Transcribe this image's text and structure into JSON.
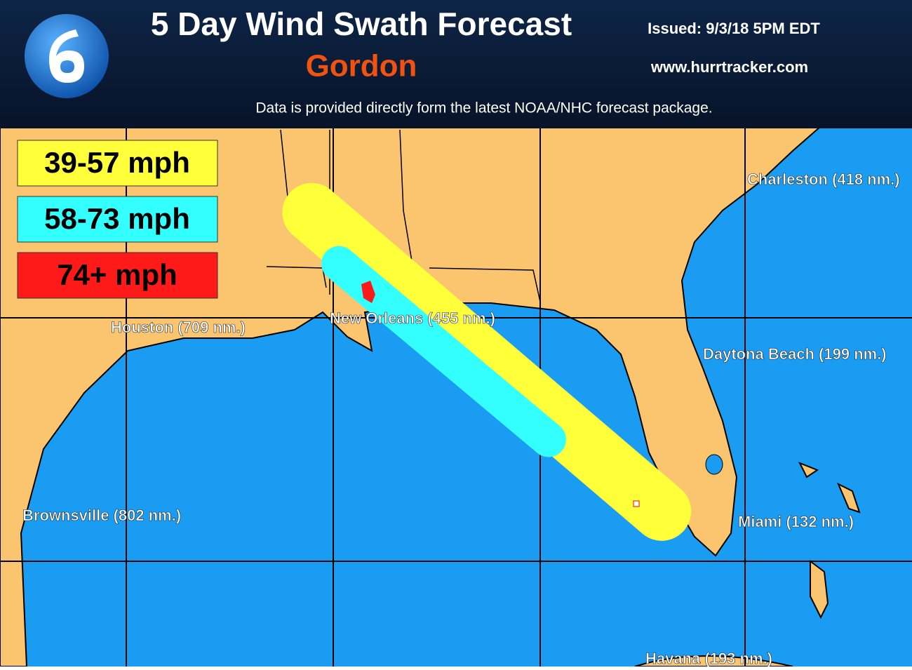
{
  "header": {
    "title": "5 Day Wind Swath Forecast",
    "storm": "Gordon",
    "issued": "Issued: 9/3/18 5PM EDT",
    "website": "www.hurrtracker.com",
    "note": "Data is provided directly form the latest NOAA/NHC forecast package."
  },
  "legend": {
    "items": [
      {
        "label": "39-57 mph",
        "color": "#ffff3a"
      },
      {
        "label": "58-73 mph",
        "color": "#33ffff"
      },
      {
        "label": "74+ mph",
        "color": "#ff1a1a"
      }
    ]
  },
  "cities": [
    "Charleston (418 nm.)",
    "Houston (709 nm.)",
    "New Orleans (455 nm.)",
    "Daytona Beach (199 nm.)",
    "Brownsville (802 nm.)",
    "Miami (132 nm.)",
    "Havana (193 nm.)"
  ]
}
